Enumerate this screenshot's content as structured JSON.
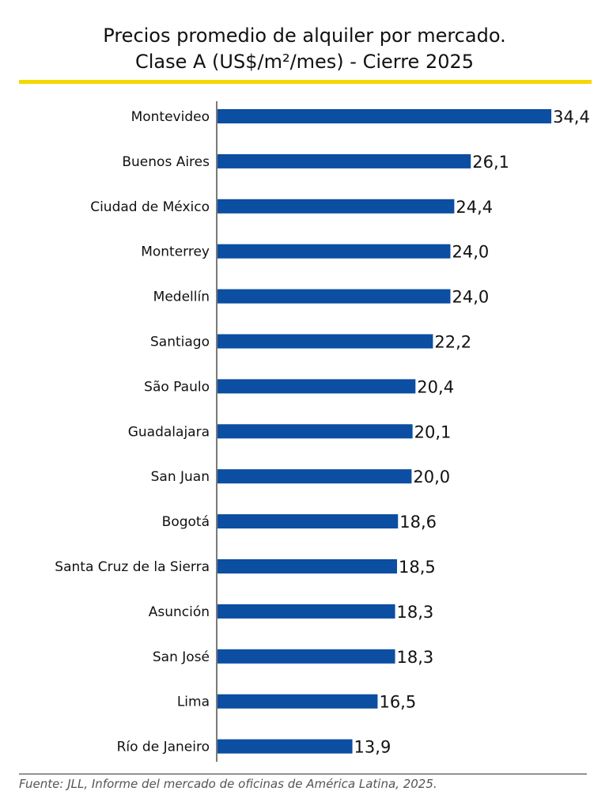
{
  "title_line1": "Precios promedio de alquiler por mercado.",
  "title_line2": "Clase A (US$/m²/mes) - Cierre 2025",
  "footer": "Fuente: JLL, Informe del mercado de oficinas de América Latina, 2025.",
  "colors": {
    "bar": "#0b4ea2",
    "rule": "#f5d800"
  },
  "chart_data": {
    "type": "bar",
    "orientation": "horizontal",
    "title": "Precios promedio de alquiler por mercado. Clase A (US$/m²/mes) - Cierre 2025",
    "categories": [
      "Montevideo",
      "Buenos Aires",
      "Ciudad de México",
      "Monterrey",
      "Medellín",
      "Santiago",
      "São Paulo",
      "Guadalajara",
      "San Juan",
      "Bogotá",
      "Santa Cruz de la Sierra",
      "Asunción",
      "San José",
      "Lima",
      "Río de Janeiro"
    ],
    "values": [
      34.4,
      26.1,
      24.4,
      24.0,
      24.0,
      22.2,
      20.4,
      20.1,
      20.0,
      18.6,
      18.5,
      18.3,
      18.3,
      16.5,
      13.9
    ],
    "labels": [
      "34,4",
      "26,1",
      "24,4",
      "24,0",
      "24,0",
      "22,2",
      "20,4",
      "20,1",
      "20,0",
      "18,6",
      "18,5",
      "18,3",
      "18,3",
      "16,5",
      "13,9"
    ],
    "grid": false
  }
}
